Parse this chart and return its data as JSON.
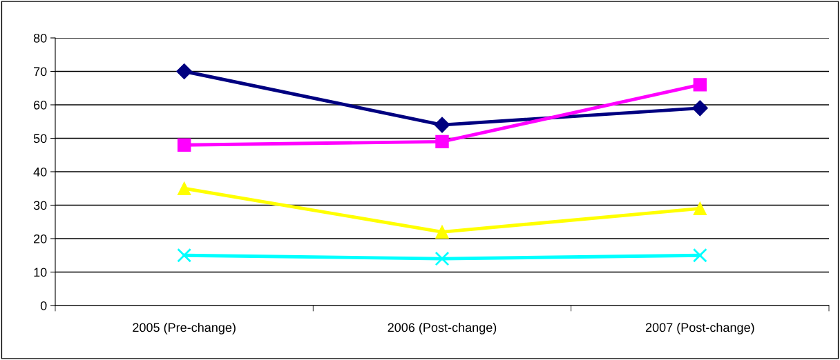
{
  "chart_data": {
    "type": "line",
    "categories": [
      "2005 (Pre-change)",
      "2006 (Post-change)",
      "2007 (Post-change)"
    ],
    "series": [
      {
        "color": "#000080",
        "marker": "diamond",
        "values": [
          70,
          54,
          59
        ]
      },
      {
        "color": "#ff00ff",
        "marker": "square",
        "values": [
          48,
          49,
          66
        ]
      },
      {
        "color": "#ffff00",
        "marker": "triangle",
        "values": [
          35,
          22,
          29
        ]
      },
      {
        "color": "#00ffff",
        "marker": "cross",
        "values": [
          15,
          14,
          15
        ]
      }
    ],
    "ylim": [
      0,
      80
    ],
    "yticks": [
      0,
      10,
      20,
      30,
      40,
      50,
      60,
      70,
      80
    ],
    "grid": "y",
    "legend": false
  }
}
